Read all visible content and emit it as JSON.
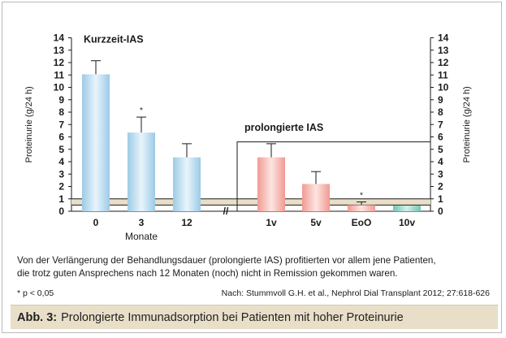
{
  "chart_data": {
    "type": "bar",
    "ylabel": "Proteinurie (g/24 h)",
    "xlabel": "Monate",
    "ylim": [
      0,
      14
    ],
    "yticks": [
      0,
      1,
      2,
      3,
      4,
      5,
      6,
      7,
      8,
      9,
      10,
      11,
      12,
      13,
      14
    ],
    "axis_break_marker": "//",
    "reference_band": [
      0.5,
      1
    ],
    "groups": [
      {
        "label": "Kurzzeit-IAS",
        "color": "#a9d3ea",
        "bars": [
          {
            "category": "0",
            "value": 11.05,
            "error": 1.1,
            "significant": ""
          },
          {
            "category": "3",
            "value": 6.35,
            "error": 1.25,
            "significant": "*"
          },
          {
            "category": "12",
            "value": 4.35,
            "error": 1.1,
            "significant": ""
          }
        ]
      },
      {
        "label": "prolongierte IAS",
        "color": "#f2a9a2",
        "bars": [
          {
            "category": "1v",
            "value": 4.35,
            "error": 1.1,
            "significant": ""
          },
          {
            "category": "5v",
            "value": 2.2,
            "error": 1.0,
            "significant": ""
          },
          {
            "category": "EoO",
            "value": 0.5,
            "error": 0.25,
            "significant": "*"
          },
          {
            "category": "10v",
            "value": 0.45,
            "error": 0,
            "significant": "",
            "color": "#86cfc0"
          }
        ]
      }
    ]
  },
  "caption": {
    "text_line1": "Von der Verlängerung der Behandlungsdauer (prolongierte IAS) profitierten vor allem jene Patienten,",
    "text_line2": "die trotz guten Ansprechens nach 12 Monaten (noch) nicht in Remission gekommen waren.",
    "footnote": "* p < 0,05",
    "source": "Nach: Stummvoll G.H. et al., Nephrol Dial Transplant 2012; 27:618-626"
  },
  "figure_label": {
    "label": "Abb. 3:",
    "title": "Prolongierte Immunadsorption bei Patienten mit hoher Proteinurie"
  }
}
